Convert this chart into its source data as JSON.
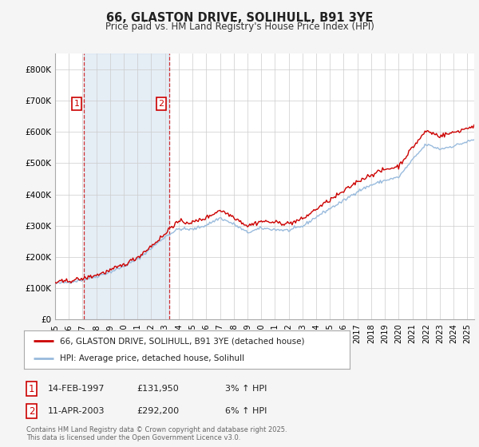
{
  "title": "66, GLASTON DRIVE, SOLIHULL, B91 3YE",
  "subtitle": "Price paid vs. HM Land Registry's House Price Index (HPI)",
  "legend_line1": "66, GLASTON DRIVE, SOLIHULL, B91 3YE (detached house)",
  "legend_line2": "HPI: Average price, detached house, Solihull",
  "transaction1_date": "14-FEB-1997",
  "transaction1_price": "£131,950",
  "transaction1_hpi": "3% ↑ HPI",
  "transaction1_year": 1997.12,
  "transaction1_value": 131950,
  "transaction2_date": "11-APR-2003",
  "transaction2_price": "£292,200",
  "transaction2_hpi": "6% ↑ HPI",
  "transaction2_year": 2003.28,
  "transaction2_value": 292200,
  "price_line_color": "#cc0000",
  "hpi_line_color": "#99bbdd",
  "vline_color": "#cc0000",
  "shade_color": "#ccdded",
  "bg_color": "#f5f5f5",
  "plot_bg_color": "#ffffff",
  "footer_text": "Contains HM Land Registry data © Crown copyright and database right 2025.\nThis data is licensed under the Open Government Licence v3.0.",
  "ylim": [
    0,
    850000
  ],
  "yticks": [
    0,
    100000,
    200000,
    300000,
    400000,
    500000,
    600000,
    700000,
    800000
  ],
  "ytick_labels": [
    "£0",
    "£100K",
    "£200K",
    "£300K",
    "£400K",
    "£500K",
    "£600K",
    "£700K",
    "£800K"
  ],
  "xmin": 1995.0,
  "xmax": 2025.5
}
